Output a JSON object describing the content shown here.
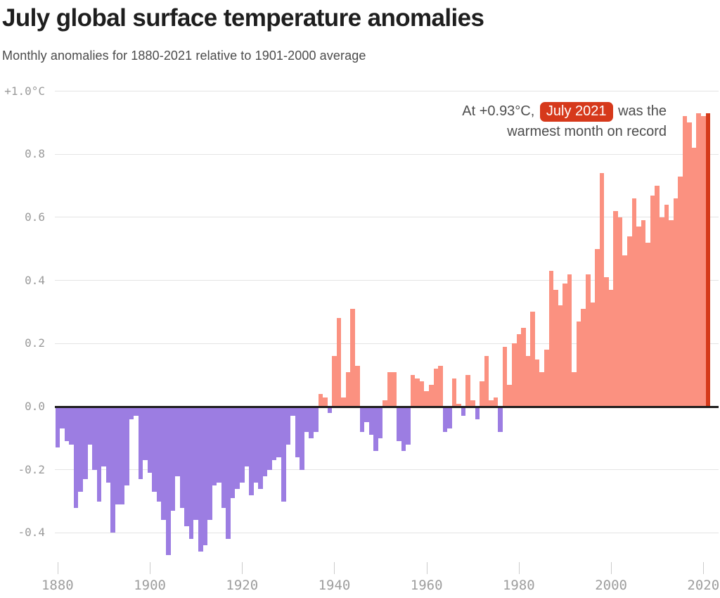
{
  "header": {
    "title": "July global surface temperature anomalies",
    "subtitle": "Monthly anomalies for 1880-2021 relative to 1901-2000 average"
  },
  "annotation": {
    "line1_prefix": "At +0.93°C,",
    "badge": "July 2021",
    "line1_suffix": "was the",
    "line2": "warmest month on record"
  },
  "colors": {
    "positive_bar": "#fb9180",
    "negative_bar": "#9c7de2",
    "highlight_bar": "#d53a1a",
    "badge_background": "#d6391b",
    "badge_text": "#ffffff",
    "zero_line": "#1d1d1d",
    "gridline": "#e4e4e4",
    "axis_text": "#9a9a9a"
  },
  "chart_data": {
    "type": "bar",
    "title": "July global surface temperature anomalies",
    "subtitle": "Monthly anomalies for 1880-2021 relative to 1901-2000 average",
    "unit": "°C",
    "x_start_year": 1880,
    "x_end_year": 2021,
    "values": [
      -0.13,
      -0.07,
      -0.11,
      -0.12,
      -0.32,
      -0.27,
      -0.23,
      -0.12,
      -0.2,
      -0.3,
      -0.19,
      -0.24,
      -0.4,
      -0.31,
      -0.31,
      -0.25,
      -0.04,
      -0.03,
      -0.23,
      -0.17,
      -0.21,
      -0.27,
      -0.3,
      -0.36,
      -0.47,
      -0.33,
      -0.22,
      -0.32,
      -0.38,
      -0.42,
      -0.36,
      -0.46,
      -0.44,
      -0.36,
      -0.25,
      -0.24,
      -0.32,
      -0.42,
      -0.29,
      -0.26,
      -0.24,
      -0.19,
      -0.28,
      -0.24,
      -0.26,
      -0.22,
      -0.2,
      -0.17,
      -0.16,
      -0.3,
      -0.12,
      -0.03,
      -0.16,
      -0.2,
      -0.08,
      -0.1,
      -0.08,
      0.04,
      0.03,
      -0.02,
      0.16,
      0.28,
      0.03,
      0.11,
      0.31,
      0.13,
      -0.08,
      -0.05,
      -0.09,
      -0.14,
      -0.1,
      0.02,
      0.11,
      0.11,
      -0.11,
      -0.14,
      -0.12,
      0.1,
      0.09,
      0.08,
      0.05,
      0.07,
      0.12,
      0.13,
      -0.08,
      -0.07,
      0.09,
      0.01,
      -0.03,
      0.1,
      0.02,
      -0.04,
      0.08,
      0.16,
      0.02,
      0.03,
      -0.08,
      0.19,
      0.07,
      0.2,
      0.23,
      0.25,
      0.16,
      0.3,
      0.15,
      0.11,
      0.18,
      0.43,
      0.37,
      0.32,
      0.39,
      0.42,
      0.11,
      0.27,
      0.31,
      0.42,
      0.33,
      0.5,
      0.74,
      0.41,
      0.37,
      0.62,
      0.6,
      0.48,
      0.54,
      0.66,
      0.57,
      0.59,
      0.52,
      0.67,
      0.7,
      0.6,
      0.64,
      0.59,
      0.66,
      0.73,
      0.92,
      0.9,
      0.82,
      0.93,
      0.92,
      0.93
    ],
    "highlight_year": 2021,
    "highlight_value": 0.93,
    "y_tick_labels": [
      "+1.0°C",
      "0.8",
      "0.6",
      "0.4",
      "0.2",
      "0.0",
      "-0.2",
      "-0.4"
    ],
    "y_tick_values": [
      1.0,
      0.8,
      0.6,
      0.4,
      0.2,
      0.0,
      -0.2,
      -0.4
    ],
    "x_tick_labels": [
      "1880",
      "1900",
      "1920",
      "1940",
      "1960",
      "1980",
      "2000",
      "2020"
    ],
    "x_tick_years": [
      1880,
      1900,
      1920,
      1940,
      1960,
      1980,
      2000,
      2020
    ],
    "ylim": [
      -0.52,
      1.02
    ],
    "grid": true,
    "zero_line": true,
    "legend": "none"
  }
}
